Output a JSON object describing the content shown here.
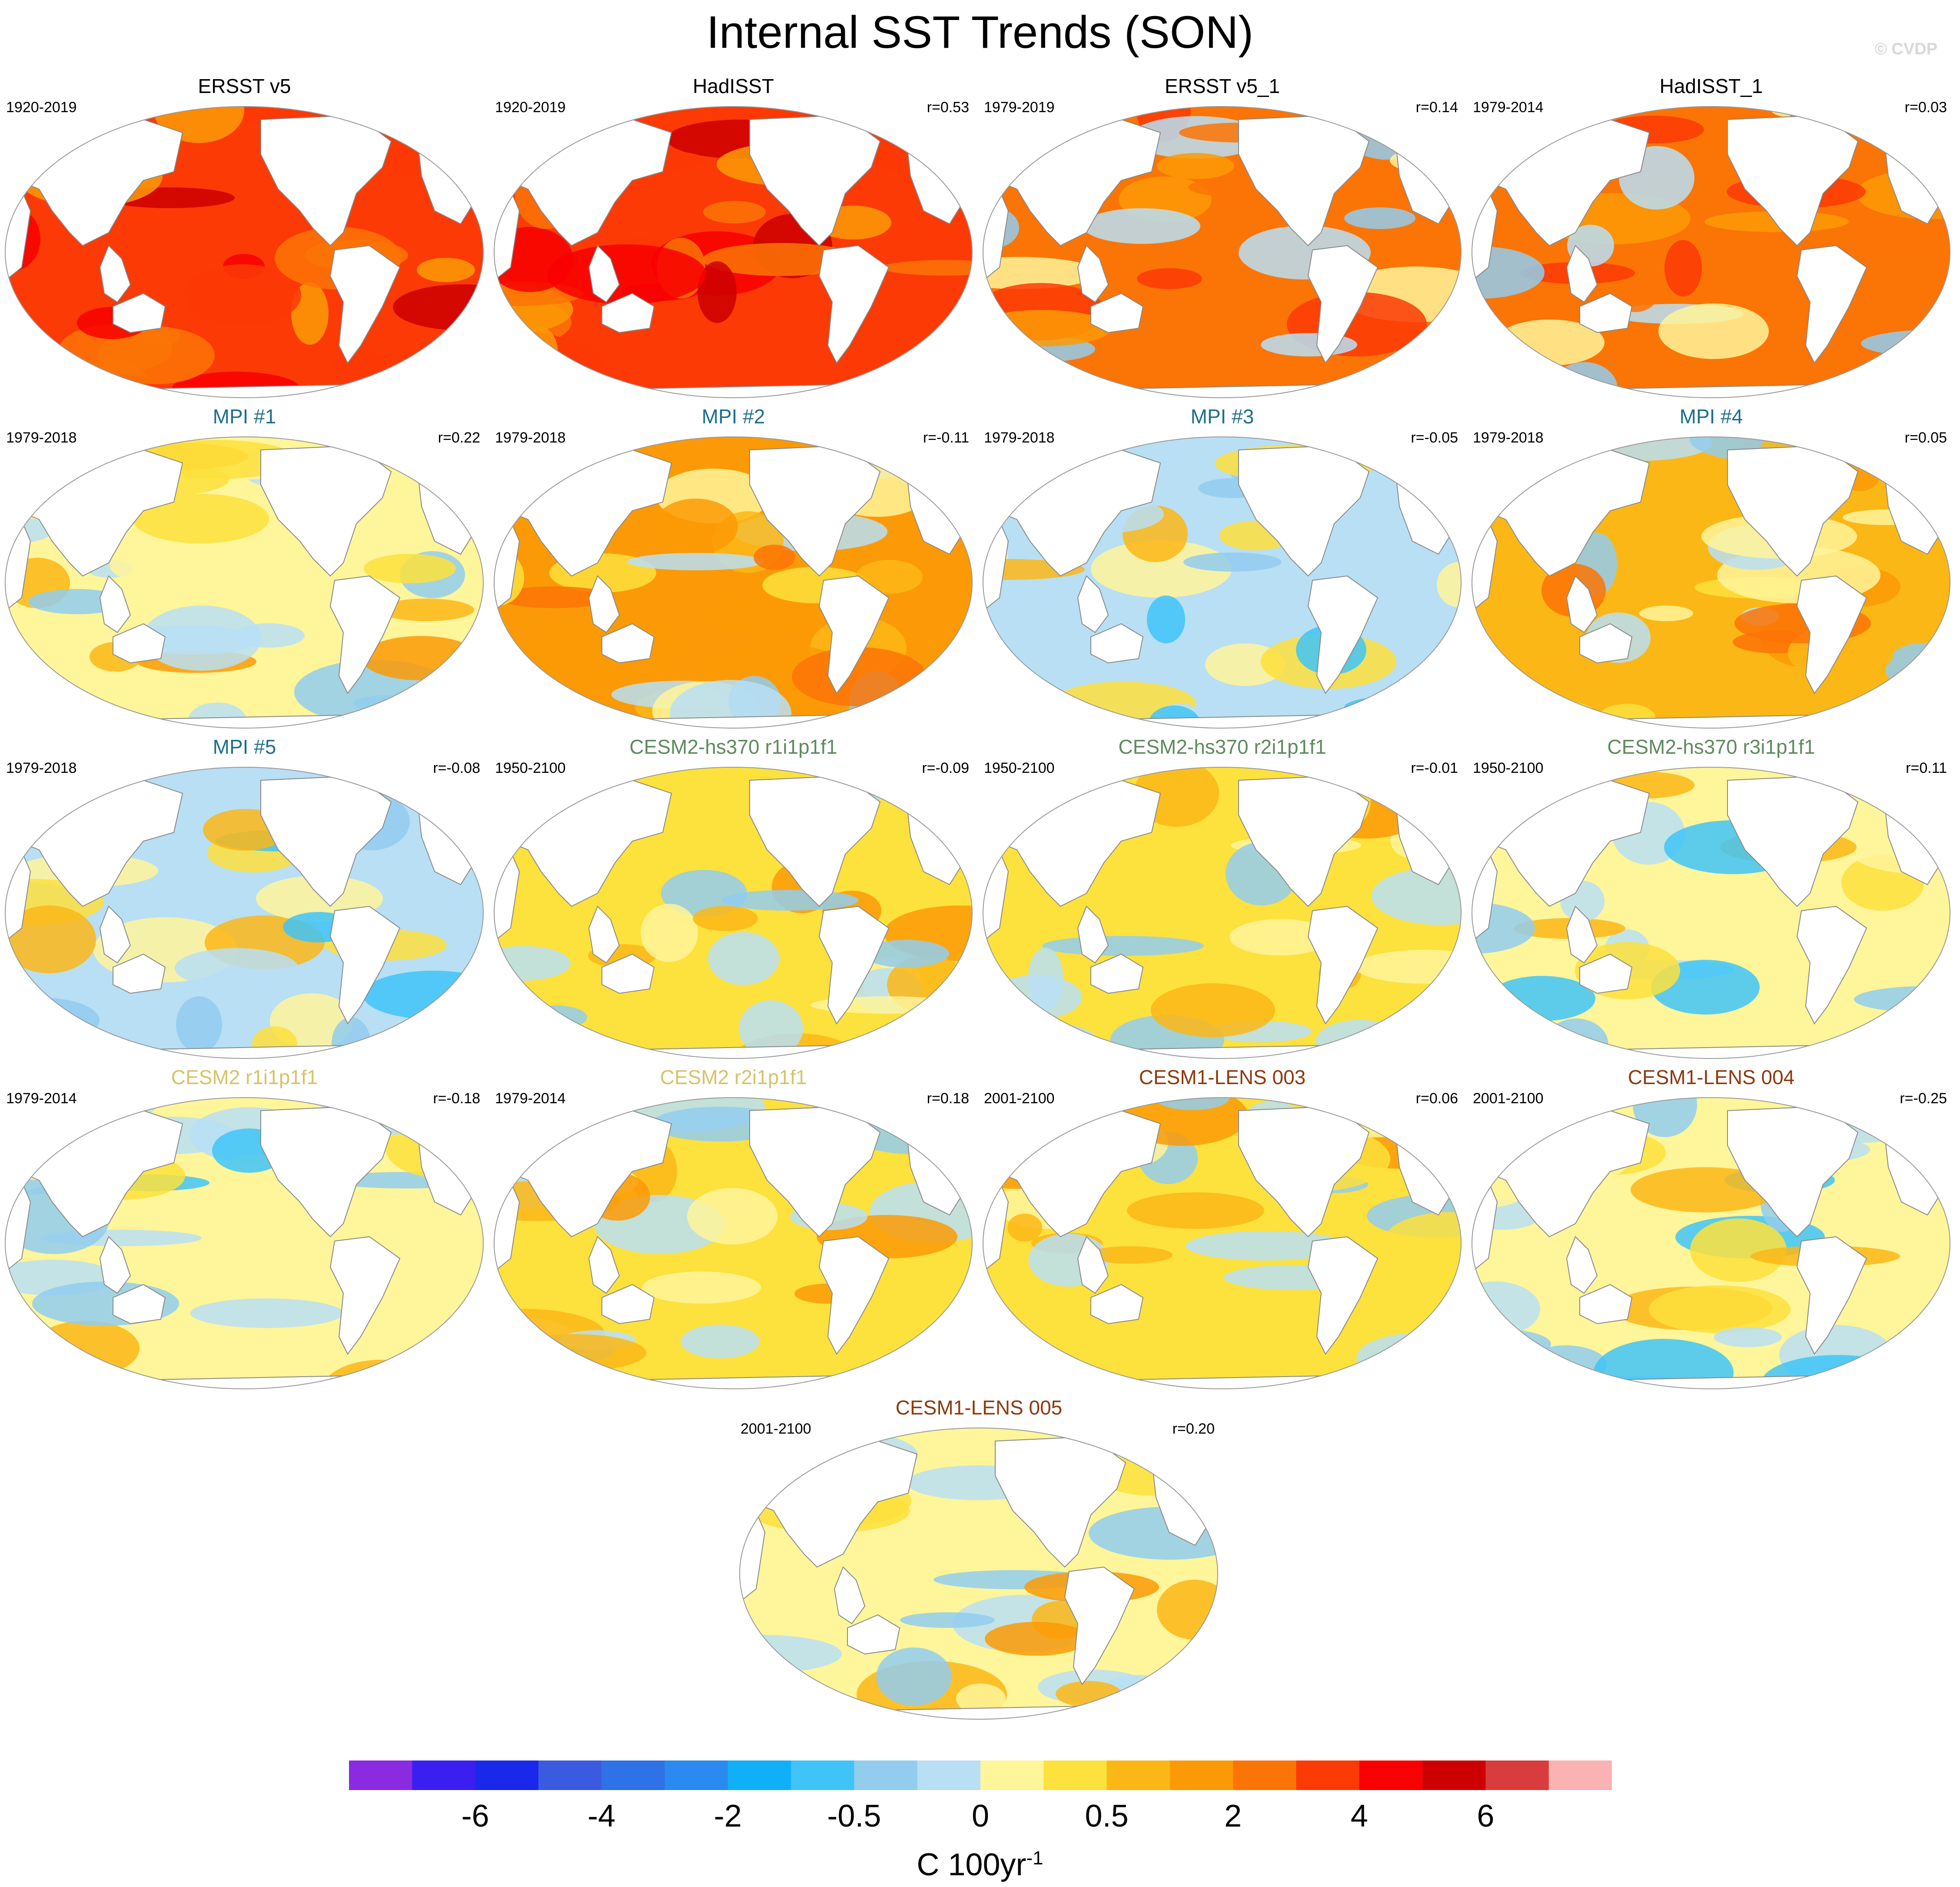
{
  "title": "Internal SST Trends (SON)",
  "watermark": "© CVDP",
  "colors": {
    "observations": "#000000",
    "MPI": "#1f6e8c",
    "CESM2-hs370": "#5e8a5e",
    "CESM2": "#d6c36a",
    "CESM1-LENS": "#8b3a0f",
    "land": "#ffffff",
    "coast": "#888888"
  },
  "panels": [
    {
      "title": "ERSST v5",
      "years": "1920-2019",
      "r": "",
      "group": "observations",
      "fill_index": 15,
      "pattern": "warm"
    },
    {
      "title": "HadISST",
      "years": "1920-2019",
      "r": "r=0.53",
      "group": "observations",
      "fill_index": 15,
      "pattern": "warm"
    },
    {
      "title": "ERSST v5_1",
      "years": "1979-2019",
      "r": "r=0.14",
      "group": "observations",
      "fill_index": 14,
      "pattern": "warm-mixed"
    },
    {
      "title": "HadISST_1",
      "years": "1979-2014",
      "r": "r=0.03",
      "group": "observations",
      "fill_index": 14,
      "pattern": "warm-mixed"
    },
    {
      "title": "MPI #1",
      "years": "1979-2018",
      "r": "r=0.22",
      "group": "MPI",
      "fill_index": 10,
      "pattern": "mixed"
    },
    {
      "title": "MPI #2",
      "years": "1979-2018",
      "r": "r=-0.11",
      "group": "MPI",
      "fill_index": 13,
      "pattern": "mixed-warm"
    },
    {
      "title": "MPI #3",
      "years": "1979-2018",
      "r": "r=-0.05",
      "group": "MPI",
      "fill_index": 9,
      "pattern": "mixed-cool"
    },
    {
      "title": "MPI #4",
      "years": "1979-2018",
      "r": "r=0.05",
      "group": "MPI",
      "fill_index": 12,
      "pattern": "mixed-warm"
    },
    {
      "title": "MPI #5",
      "years": "1979-2018",
      "r": "r=-0.08",
      "group": "MPI",
      "fill_index": 9,
      "pattern": "mixed-cool"
    },
    {
      "title": "CESM2-hs370 r1i1p1f1",
      "years": "1950-2100",
      "r": "r=-0.09",
      "group": "CESM2-hs370",
      "fill_index": 11,
      "pattern": "mixed"
    },
    {
      "title": "CESM2-hs370 r2i1p1f1",
      "years": "1950-2100",
      "r": "r=-0.01",
      "group": "CESM2-hs370",
      "fill_index": 11,
      "pattern": "mixed"
    },
    {
      "title": "CESM2-hs370 r3i1p1f1",
      "years": "1950-2100",
      "r": "r=0.11",
      "group": "CESM2-hs370",
      "fill_index": 10,
      "pattern": "mixed-cool"
    },
    {
      "title": "CESM2 r1i1p1f1",
      "years": "1979-2014",
      "r": "r=-0.18",
      "group": "CESM2",
      "fill_index": 10,
      "pattern": "mixed-cool"
    },
    {
      "title": "CESM2 r2i1p1f1",
      "years": "1979-2014",
      "r": "r=0.18",
      "group": "CESM2",
      "fill_index": 11,
      "pattern": "mixed"
    },
    {
      "title": "CESM1-LENS 003",
      "years": "2001-2100",
      "r": "r=0.06",
      "group": "CESM1-LENS",
      "fill_index": 11,
      "pattern": "mixed"
    },
    {
      "title": "CESM1-LENS 004",
      "years": "2001-2100",
      "r": "r=-0.25",
      "group": "CESM1-LENS",
      "fill_index": 10,
      "pattern": "mixed-cool"
    },
    {
      "title": "CESM1-LENS 005",
      "years": "2001-2100",
      "r": "r=0.20",
      "group": "CESM1-LENS",
      "fill_index": 10,
      "pattern": "mixed"
    }
  ],
  "colorbar": {
    "colors": [
      "#8a2be2",
      "#3a1ff0",
      "#1a28ea",
      "#3a5be0",
      "#2f71e6",
      "#2a8af0",
      "#10b0f8",
      "#40c4f8",
      "#92cdee",
      "#b8dff4",
      "#fff59a",
      "#fde13c",
      "#fbb716",
      "#fb9a06",
      "#fb7406",
      "#fb3a06",
      "#f80000",
      "#cc0000",
      "#d83c3c",
      "#fbb2b2"
    ],
    "tick_labels": [
      "-6",
      "-4",
      "-2",
      "-0.5",
      "0",
      "0.5",
      "2",
      "4",
      "6"
    ],
    "units": "C 100yr",
    "units_superscript": "-1"
  }
}
